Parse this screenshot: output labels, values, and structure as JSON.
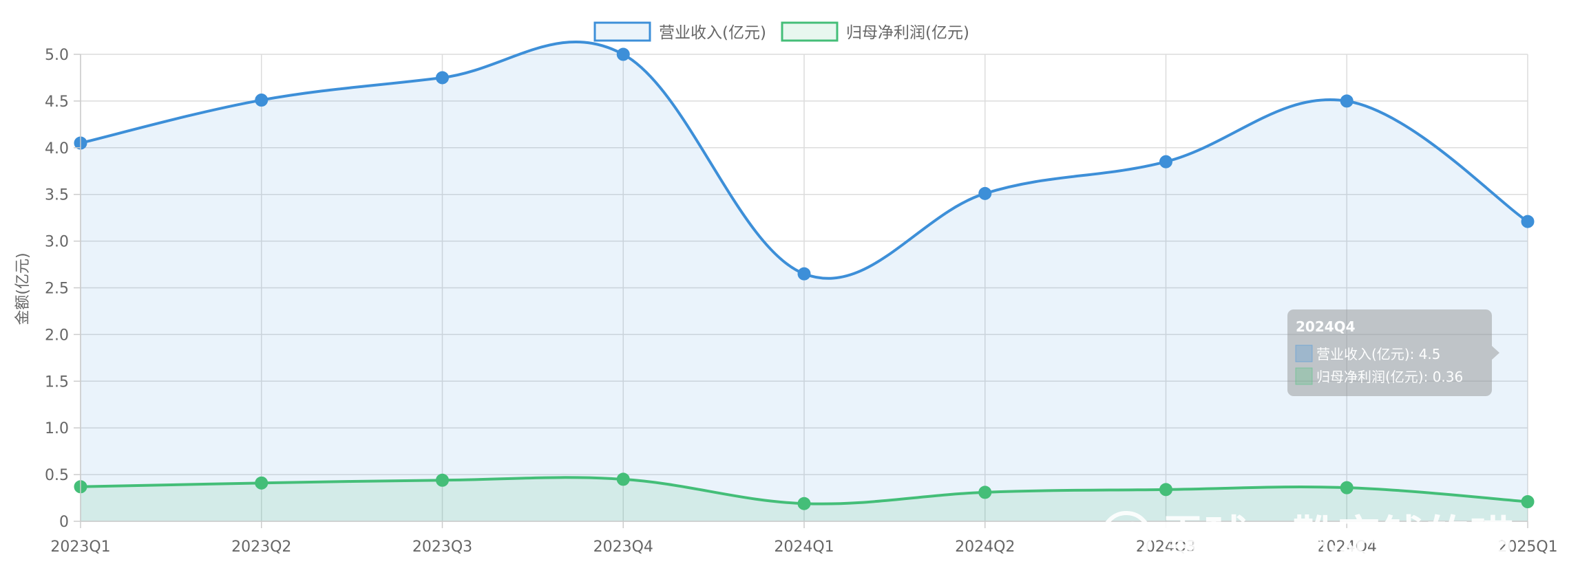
{
  "chart_data": {
    "type": "line",
    "categories": [
      "2023Q1",
      "2023Q2",
      "2023Q3",
      "2023Q4",
      "2024Q1",
      "2024Q2",
      "2024Q3",
      "2024Q4",
      "2025Q1"
    ],
    "series": [
      {
        "name": "营业收入(亿元)",
        "values": [
          4.05,
          4.51,
          4.75,
          5.0,
          2.65,
          3.51,
          3.85,
          4.5,
          3.21
        ],
        "color": "#3d8fd8"
      },
      {
        "name": "归母净利润(亿元)",
        "values": [
          0.37,
          0.41,
          0.44,
          0.45,
          0.19,
          0.31,
          0.34,
          0.36,
          0.21
        ],
        "color": "#44be78"
      }
    ],
    "ylabel": "金额(亿元)",
    "ylim": [
      0,
      5
    ],
    "yticks": [
      "0",
      "0.5",
      "1.0",
      "1.5",
      "2.0",
      "2.5",
      "3.0",
      "3.5",
      "4.0",
      "4.5",
      "5.0"
    ],
    "grid": true,
    "legend_position": "top-center",
    "area_fill": true
  },
  "tooltip": {
    "title": "2024Q4",
    "lines": [
      "营业收入(亿元): 4.5",
      "归母净利润(亿元): 0.36"
    ]
  },
  "watermark": {
    "text": "雪球：靴定钱的喵"
  }
}
